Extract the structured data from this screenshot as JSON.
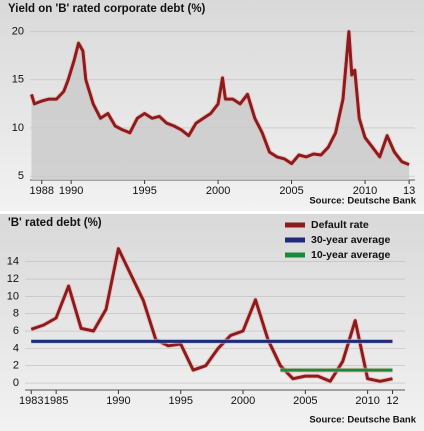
{
  "chart_data": [
    {
      "type": "line",
      "title": "Yield on 'B' rated corporate debt (%)",
      "source": "Source: Deutsche Bank",
      "x": [
        1987.3,
        1987.5,
        1988,
        1988.5,
        1989,
        1989.5,
        1989.8,
        1990.2,
        1990.5,
        1990.8,
        1991,
        1991.5,
        1992,
        1992.5,
        1993,
        1993.5,
        1994,
        1994.5,
        1995,
        1995.5,
        1996,
        1996.5,
        1997,
        1997.5,
        1998,
        1998.5,
        1999,
        1999.5,
        2000,
        2000.3,
        2000.5,
        2001,
        2001.5,
        2002,
        2002.5,
        2003,
        2003.5,
        2004,
        2004.5,
        2005,
        2005.5,
        2006,
        2006.5,
        2007,
        2007.5,
        2008,
        2008.5,
        2008.9,
        2009.1,
        2009.3,
        2009.6,
        2010,
        2010.5,
        2011,
        2011.5,
        2012,
        2012.5,
        2013
      ],
      "series": [
        {
          "color": "#8e1b1b",
          "values": [
            13.5,
            12.5,
            12.8,
            13,
            13,
            13.8,
            15,
            17,
            18.8,
            18,
            15,
            12.5,
            11,
            11.5,
            10.2,
            9.8,
            9.5,
            11,
            11.5,
            11,
            11.2,
            10.5,
            10.2,
            9.8,
            9.2,
            10.5,
            11,
            11.5,
            12.5,
            15.2,
            13,
            13,
            12.5,
            13.5,
            11,
            9.5,
            7.5,
            7,
            6.8,
            6.3,
            7.2,
            7,
            7.3,
            7.2,
            8,
            9.5,
            13,
            20,
            15.5,
            16,
            11,
            9,
            8,
            7,
            9.2,
            7.5,
            6.5,
            6.2
          ]
        }
      ],
      "area": true,
      "xlim": [
        1987.2,
        2013.4
      ],
      "xticks": [
        1988,
        1990,
        1995,
        2000,
        2005,
        2010,
        {
          "value": 2013,
          "label": "13"
        }
      ],
      "ylim": [
        4.6,
        21
      ],
      "yticks": [
        5,
        10,
        15,
        20
      ],
      "grid": true
    },
    {
      "type": "line",
      "title": "'B' rated debt (%)",
      "source": "Source: Deutsche Bank",
      "series": [
        {
          "name": "Default rate",
          "color": "#8e1b1b",
          "x": [
            1983,
            1984,
            1985,
            1986,
            1987,
            1988,
            1989,
            1990,
            1991,
            1992,
            1993,
            1994,
            1995,
            1996,
            1997,
            1998,
            1999,
            2000,
            2001,
            2002,
            2003,
            2004,
            2005,
            2006,
            2007,
            2008,
            2009,
            2010,
            2011,
            2012
          ],
          "values": [
            6.2,
            6.7,
            7.5,
            11.2,
            6.3,
            6.0,
            8.5,
            15.5,
            12.5,
            9.5,
            5.0,
            4.3,
            4.5,
            1.5,
            2.0,
            4.0,
            5.5,
            6.0,
            9.6,
            5.0,
            2.0,
            0.5,
            0.8,
            0.8,
            0.2,
            2.5,
            7.2,
            0.5,
            0.2,
            0.5
          ]
        },
        {
          "name": "30-year average",
          "color": "#1f2a7a",
          "x": [
            1983,
            2012
          ],
          "values": [
            4.8,
            4.8
          ]
        },
        {
          "name": "10-year average",
          "color": "#1a8a3a",
          "x": [
            2003,
            2012
          ],
          "values": [
            1.5,
            1.5
          ]
        }
      ],
      "xlim": [
        1982.5,
        2013
      ],
      "xticks": [
        1983,
        1985,
        1990,
        1995,
        2000,
        2005,
        2010,
        {
          "value": 2012,
          "label": "12"
        }
      ],
      "ylim": [
        -0.8,
        16.5
      ],
      "yticks": [
        0,
        2,
        4,
        6,
        8,
        10,
        12,
        14
      ],
      "grid": true,
      "legend": "top-right"
    }
  ]
}
